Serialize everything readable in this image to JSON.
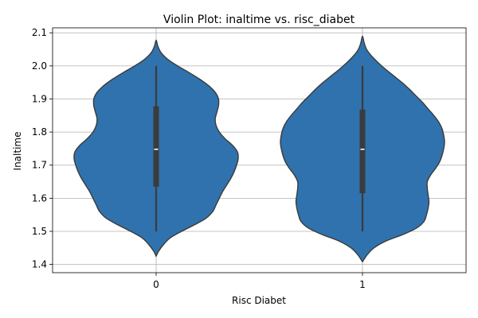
{
  "chart_data": {
    "type": "violin",
    "title": "Violin Plot: inaltime vs. risc_diabet",
    "xlabel": "Risc Diabet",
    "ylabel": "Inaltime",
    "categories": [
      "0",
      "1"
    ],
    "ylim": [
      1.375,
      2.115
    ],
    "yticks": [
      "1.4",
      "1.5",
      "1.6",
      "1.7",
      "1.8",
      "1.9",
      "2.0",
      "2.1"
    ],
    "grid": true,
    "violins": [
      {
        "category": "0",
        "min": 1.5,
        "q1": 1.635,
        "median": 1.748,
        "q3": 1.878,
        "max": 2.0,
        "kde_min": 1.425,
        "kde_max": 2.078,
        "density_profile": [
          [
            1.425,
            0.0
          ],
          [
            1.44,
            0.03
          ],
          [
            1.46,
            0.09
          ],
          [
            1.48,
            0.17
          ],
          [
            1.5,
            0.31
          ],
          [
            1.52,
            0.47
          ],
          [
            1.54,
            0.61
          ],
          [
            1.56,
            0.69
          ],
          [
            1.58,
            0.73
          ],
          [
            1.6,
            0.77
          ],
          [
            1.62,
            0.81
          ],
          [
            1.64,
            0.86
          ],
          [
            1.66,
            0.91
          ],
          [
            1.68,
            0.95
          ],
          [
            1.7,
            0.98
          ],
          [
            1.72,
            1.0
          ],
          [
            1.74,
            0.99
          ],
          [
            1.76,
            0.93
          ],
          [
            1.78,
            0.84
          ],
          [
            1.8,
            0.77
          ],
          [
            1.82,
            0.73
          ],
          [
            1.84,
            0.72
          ],
          [
            1.86,
            0.74
          ],
          [
            1.88,
            0.76
          ],
          [
            1.9,
            0.76
          ],
          [
            1.92,
            0.72
          ],
          [
            1.94,
            0.64
          ],
          [
            1.96,
            0.53
          ],
          [
            1.98,
            0.4
          ],
          [
            2.0,
            0.26
          ],
          [
            2.02,
            0.14
          ],
          [
            2.04,
            0.06
          ],
          [
            2.06,
            0.02
          ],
          [
            2.078,
            0.0
          ]
        ]
      },
      {
        "category": "1",
        "min": 1.5,
        "q1": 1.615,
        "median": 1.748,
        "q3": 1.868,
        "max": 2.0,
        "kde_min": 1.408,
        "kde_max": 2.09,
        "density_profile": [
          [
            1.408,
            0.0
          ],
          [
            1.43,
            0.06
          ],
          [
            1.45,
            0.14
          ],
          [
            1.47,
            0.28
          ],
          [
            1.49,
            0.49
          ],
          [
            1.51,
            0.66
          ],
          [
            1.53,
            0.75
          ],
          [
            1.55,
            0.78
          ],
          [
            1.57,
            0.8
          ],
          [
            1.59,
            0.81
          ],
          [
            1.61,
            0.8
          ],
          [
            1.63,
            0.79
          ],
          [
            1.65,
            0.79
          ],
          [
            1.67,
            0.83
          ],
          [
            1.69,
            0.89
          ],
          [
            1.71,
            0.94
          ],
          [
            1.73,
            0.97
          ],
          [
            1.75,
            0.99
          ],
          [
            1.77,
            1.0
          ],
          [
            1.79,
            0.99
          ],
          [
            1.81,
            0.97
          ],
          [
            1.83,
            0.93
          ],
          [
            1.85,
            0.87
          ],
          [
            1.87,
            0.8
          ],
          [
            1.89,
            0.73
          ],
          [
            1.91,
            0.65
          ],
          [
            1.93,
            0.57
          ],
          [
            1.95,
            0.48
          ],
          [
            1.97,
            0.38
          ],
          [
            1.99,
            0.28
          ],
          [
            2.01,
            0.19
          ],
          [
            2.03,
            0.11
          ],
          [
            2.05,
            0.05
          ],
          [
            2.07,
            0.02
          ],
          [
            2.09,
            0.0
          ]
        ]
      }
    ],
    "colors": {
      "violin_fill": "#2f72ad",
      "violin_edge": "#3b3b3b",
      "box": "#3b3b3b",
      "median": "#ffffff",
      "grid": "#b0b0b0",
      "axes": "#000000"
    }
  }
}
